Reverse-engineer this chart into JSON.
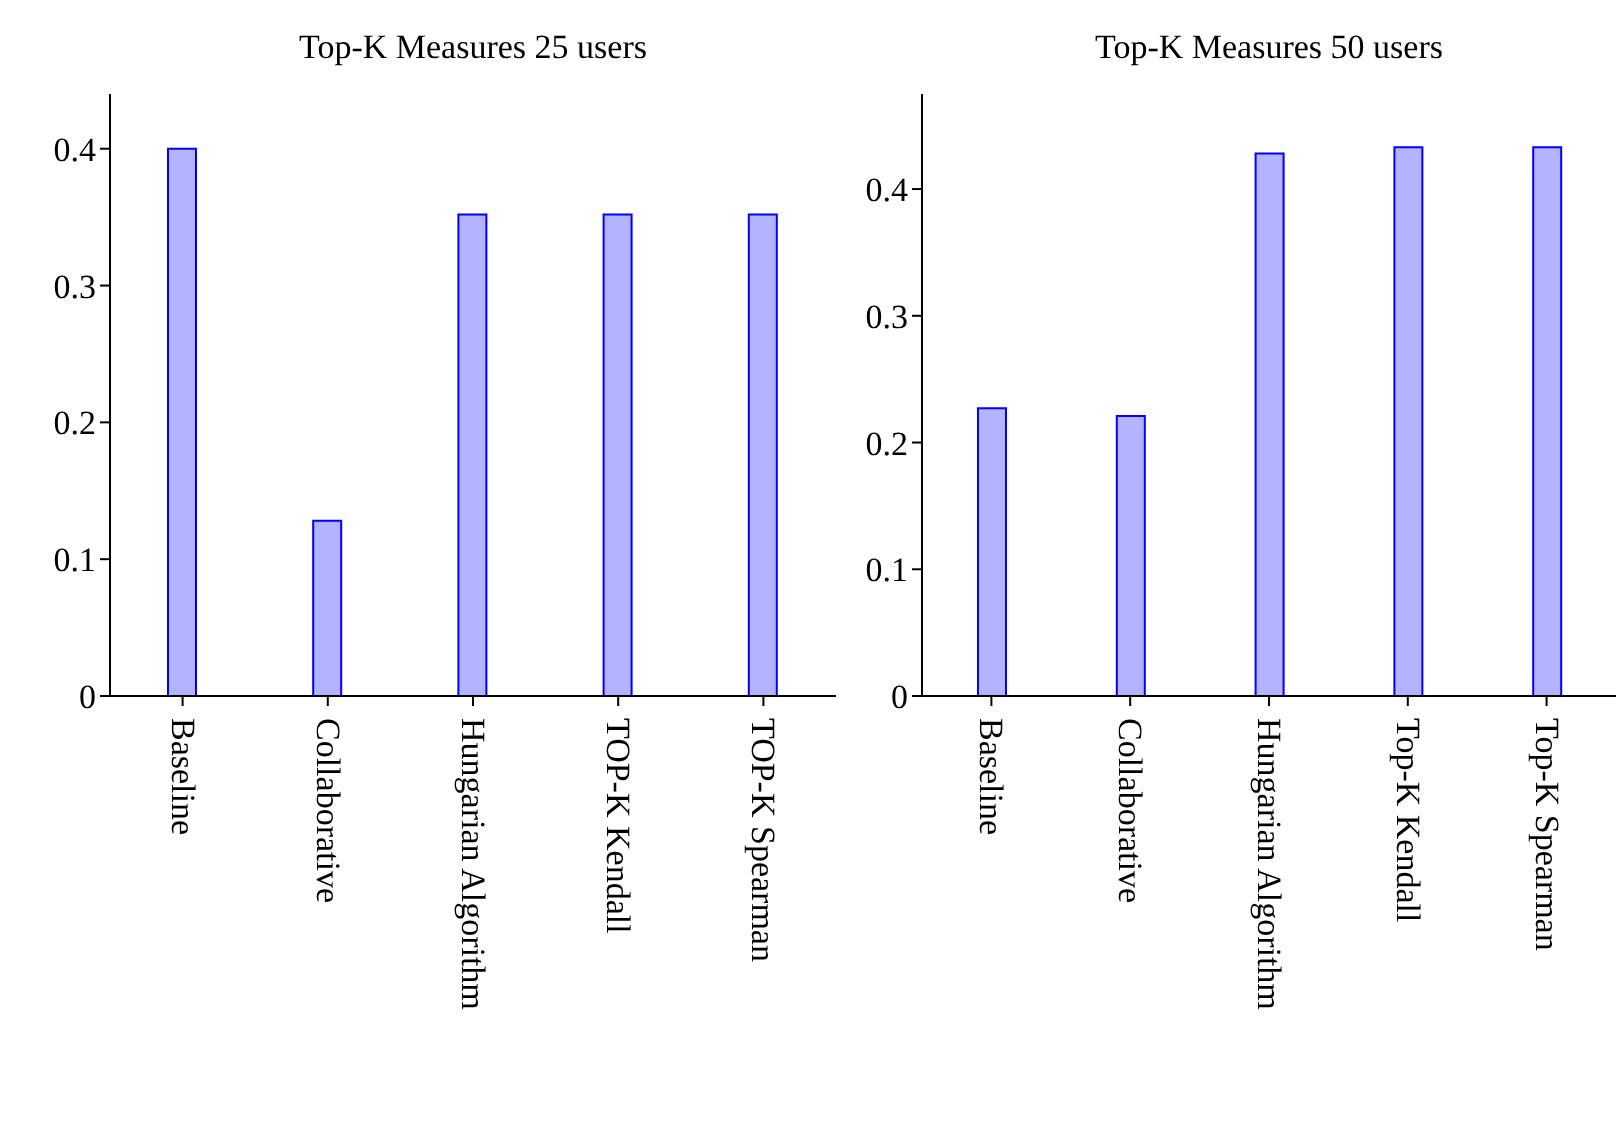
{
  "chart_data": [
    {
      "type": "bar",
      "title": "Top-K Measures 25 users",
      "categories": [
        "Baseline",
        "Collaborative",
        "Hungarian Algorithm",
        "TOP-K Kendall",
        "TOP-K Spearman"
      ],
      "values": [
        0.4,
        0.128,
        0.352,
        0.352,
        0.352
      ],
      "color": "#b3b3ff",
      "ylim": [
        0,
        0.44
      ],
      "yticks": [
        0,
        0.1,
        0.2,
        0.3,
        0.4
      ]
    },
    {
      "type": "bar",
      "title": "Top-K Measures 50 users",
      "categories": [
        "Baseline",
        "Collaborative",
        "Hungarian Algorithm",
        "Top-K Kendall",
        "Top-K Spearman"
      ],
      "values": [
        0.227,
        0.221,
        0.428,
        0.433,
        0.433
      ],
      "color": "#b3b3ff",
      "ylim": [
        0,
        0.475
      ],
      "yticks": [
        0,
        0.1,
        0.2,
        0.3,
        0.4
      ]
    }
  ]
}
